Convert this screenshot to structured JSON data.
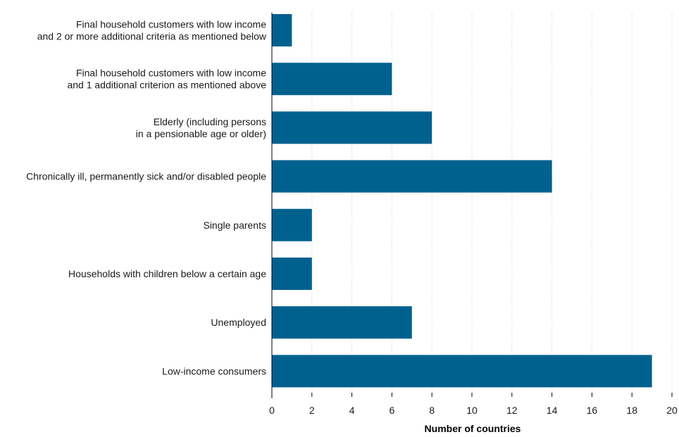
{
  "chart_data": {
    "type": "bar",
    "orientation": "horizontal",
    "categories": [
      "Final household customers with low income\nand 2 or more additional criteria as mentioned below",
      "Final household customers with low income\nand 1 additional criterion as mentioned above",
      "Elderly (including persons\nin a pensionable age or older)",
      "Chronically ill, permanently sick and/or disabled people",
      "Single parents",
      "Households with children below a certain age",
      "Unemployed",
      "Low-income consumers"
    ],
    "values": [
      1,
      6,
      8,
      14,
      2,
      2,
      7,
      19
    ],
    "xlabel": "Number of countries",
    "ylabel": "",
    "xlim": [
      0,
      20
    ],
    "xticks": [
      0,
      2,
      4,
      6,
      8,
      10,
      12,
      14,
      16,
      18,
      20
    ],
    "grid": "vertical dotted",
    "legend": "none",
    "bar_color": "#00618f"
  }
}
